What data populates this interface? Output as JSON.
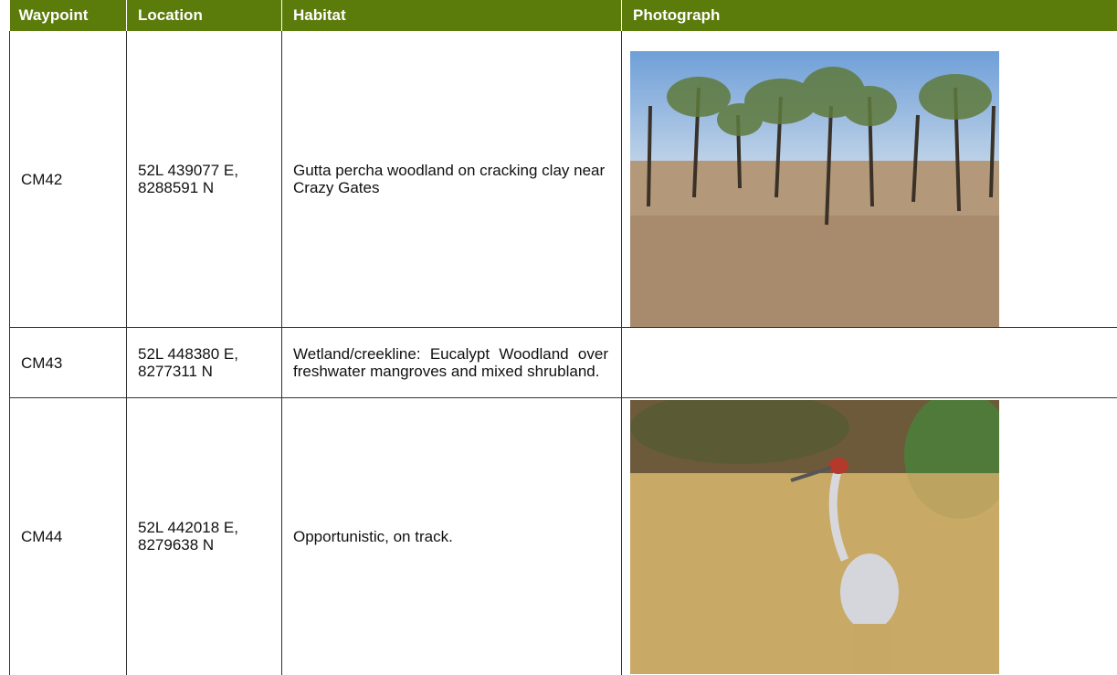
{
  "table": {
    "header": [
      "Waypoint",
      "Location",
      "Habitat",
      "Photograph"
    ],
    "rows": [
      [
        "CM42",
        "52L 439077 E, 8288591 N",
        "Gutta percha woodland on cracking clay near Crazy Gates"
      ],
      [
        "CM43",
        "52L 448380 E, 8277311 N",
        "Wetland/creekline: Eucalypt Woodland over freshwater mangroves and mixed shrubland."
      ],
      [
        "CM44",
        "52L 442018 E, 8279638 N",
        "Opportunistic, on track."
      ]
    ]
  }
}
